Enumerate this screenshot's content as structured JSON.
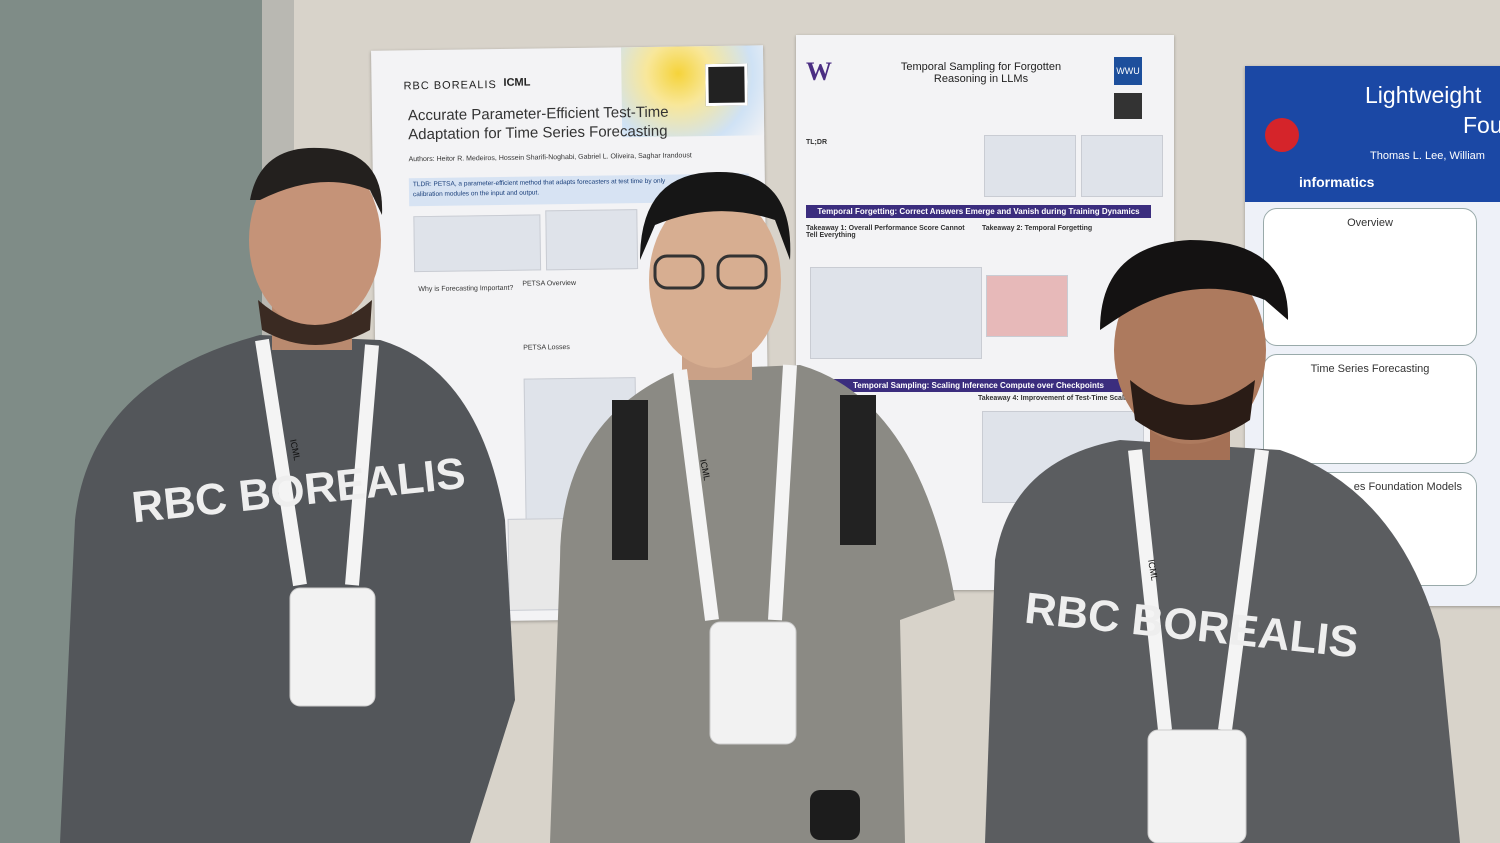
{
  "posters": [
    {
      "logos": [
        "RBC BOREALIS",
        "ICML"
      ],
      "title": "Accurate Parameter-Efficient Test-Time Adaptation for Time Series Forecasting",
      "authors": "Authors: Heitor R. Medeiros, Hossein Sharifi-Noghabi, Gabriel L. Oliveira, Saghar Irandoust",
      "tldr": [
        "TLDR: PETSA, a parameter-efficient method that adapts forecasters at test time by only",
        "calibration modules on the input and output."
      ],
      "sections": [
        "Why is Forecasting Important?",
        "PETSA Overview",
        "PETSA Losses"
      ]
    },
    {
      "logos": [
        "W",
        "WWU"
      ],
      "title": "Temporal Sampling for Forgotten Reasoning in LLMs",
      "tldr": [
        "TL;DR"
      ],
      "sections": [
        "Temporal Forgetting: Correct Answers Emerge and Vanish during Training Dynamics",
        "Takeaway 1: Overall Performance Score Cannot Tell Everything",
        "Takeaway 2: Temporal Forgetting",
        "Temporal Sampling: Scaling Inference Compute over Checkpoints",
        "Takeaway 4: Improvement of Test-Time Scaling"
      ]
    },
    {
      "logos": [
        "informatics"
      ],
      "title": [
        "Lightweight",
        "Foun"
      ],
      "authors": "Thomas L. Lee, William",
      "sections": [
        "Overview",
        "Time Series Forecasting",
        "es Foundation Models"
      ]
    }
  ],
  "people": [
    {
      "shirt": "RBC BOREALIS",
      "lanyard": "ICML"
    },
    {
      "shirt": "",
      "lanyard": "ICML"
    },
    {
      "shirt": "RBC BOREALIS",
      "lanyard": "ICML"
    }
  ]
}
